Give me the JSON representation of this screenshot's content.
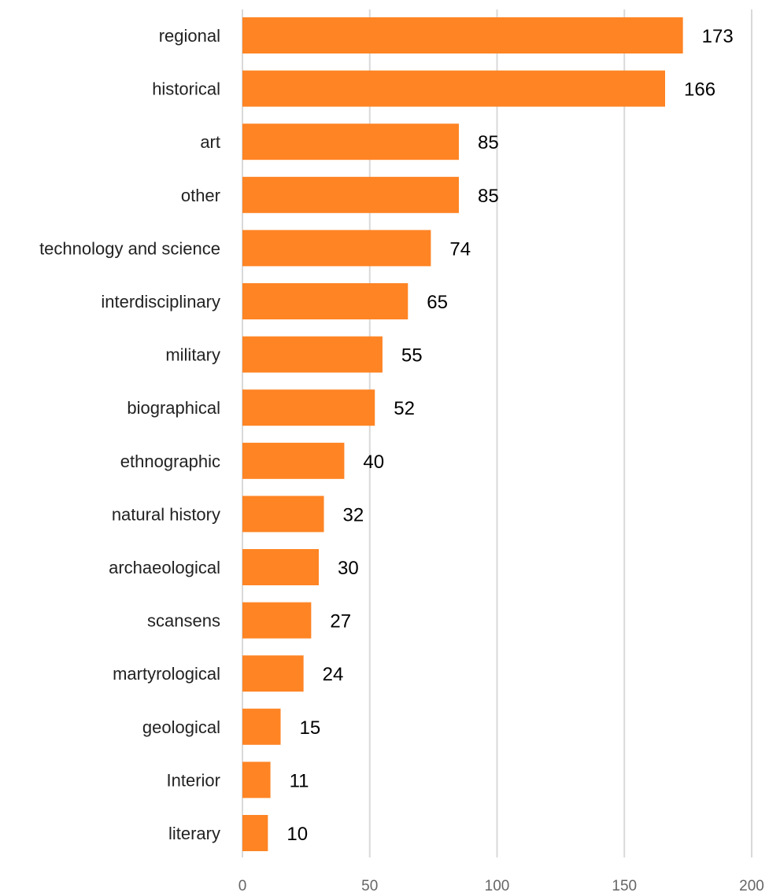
{
  "chart_data": {
    "type": "bar",
    "orientation": "horizontal",
    "categories": [
      "regional",
      "historical",
      "art",
      "other",
      "technology and science",
      "interdisciplinary",
      "military",
      "biographical",
      "ethnographic",
      "natural history",
      "archaeological",
      "scansens",
      "martyrological",
      "geological",
      "Interior",
      "literary"
    ],
    "values": [
      173,
      166,
      85,
      85,
      74,
      65,
      55,
      52,
      40,
      32,
      30,
      27,
      24,
      15,
      11,
      10
    ],
    "xlim": [
      0,
      200
    ],
    "xticks": [
      0,
      50,
      100,
      150,
      200
    ],
    "grid": "vertical",
    "legend": "none",
    "title": "",
    "xlabel": "",
    "ylabel": "",
    "colors": {
      "bar": "#FF8424",
      "grid": "#D9D9D9",
      "value_label": "#000000",
      "category_label": "#222222",
      "tick_label": "#666666"
    }
  }
}
